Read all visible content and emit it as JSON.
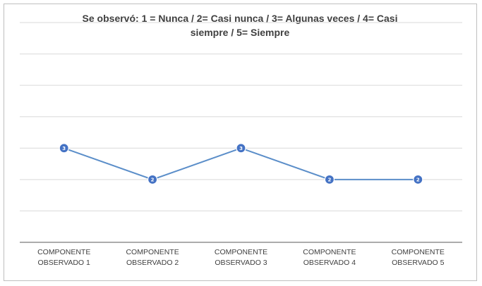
{
  "chart_data": {
    "type": "line",
    "title": "Se observó: 1 =  Nunca / 2= Casi nunca / 3= Algunas veces / 4= Casi siempre / 5= Siempre",
    "categories": [
      [
        "COMPONENTE",
        "OBSERVADO 1"
      ],
      [
        "COMPONENTE",
        "OBSERVADO 2"
      ],
      [
        "COMPONENTE",
        "OBSERVADO 3"
      ],
      [
        "COMPONENTE",
        "OBSERVADO 4"
      ],
      [
        "COMPONENTE",
        "OBSERVADO 5"
      ]
    ],
    "values": [
      3,
      2,
      3,
      2,
      2
    ],
    "data_labels": [
      "3",
      "2",
      "3",
      "2",
      "2"
    ],
    "ylim": [
      0,
      7
    ],
    "grid": true,
    "legend": "none",
    "colors": {
      "line": "#5b8ec9",
      "marker": "#4472c4",
      "grid": "#d9d9d9",
      "axis": "#595959"
    }
  }
}
